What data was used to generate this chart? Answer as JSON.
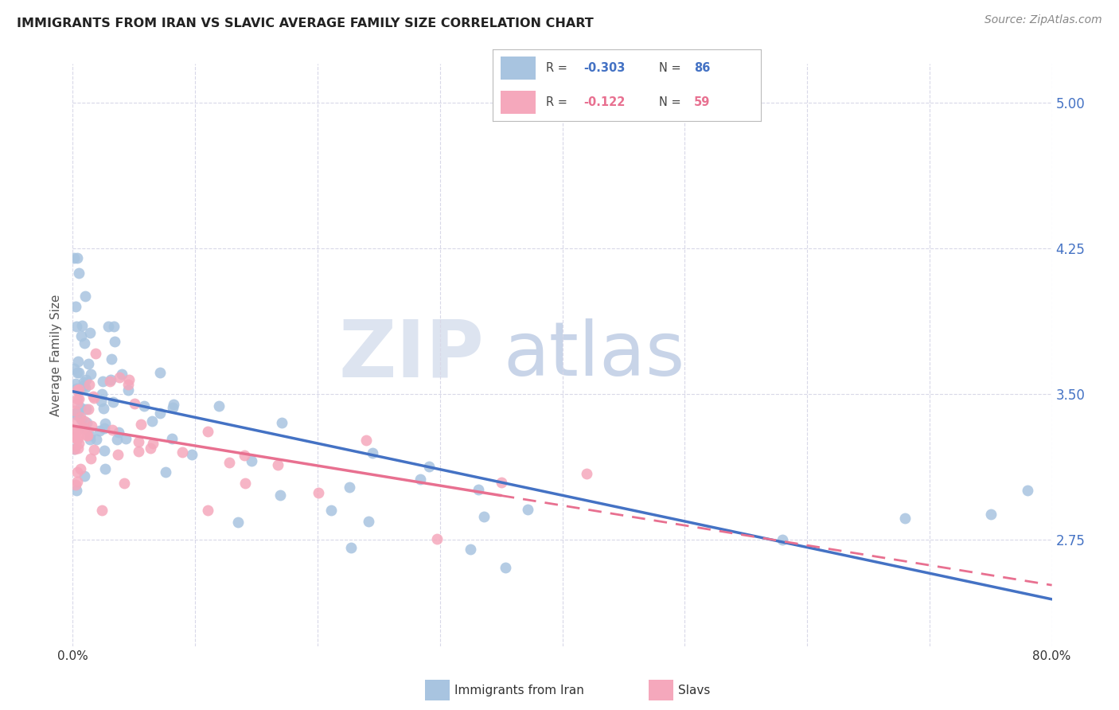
{
  "title": "IMMIGRANTS FROM IRAN VS SLAVIC AVERAGE FAMILY SIZE CORRELATION CHART",
  "source": "Source: ZipAtlas.com",
  "ylabel": "Average Family Size",
  "xlim": [
    0.0,
    0.8
  ],
  "ylim": [
    2.2,
    5.2
  ],
  "yticks": [
    2.75,
    3.5,
    4.25,
    5.0
  ],
  "xticks": [
    0.0,
    0.1,
    0.2,
    0.3,
    0.4,
    0.5,
    0.6,
    0.7,
    0.8
  ],
  "background_color": "#ffffff",
  "grid_color": "#d8d8e8",
  "iran_color": "#a8c4e0",
  "slavic_color": "#f5a8bc",
  "iran_line_color": "#4472c4",
  "slavic_line_color": "#e87090",
  "iran_R": "-0.303",
  "iran_N": "86",
  "slavic_R": "-0.122",
  "slavic_N": "59",
  "legend_label_iran": "Immigrants from Iran",
  "legend_label_slavic": "Slavs",
  "right_ytick_color": "#4472c4",
  "watermark_zip_color": "#dde4f0",
  "watermark_atlas_color": "#c8d4e8"
}
